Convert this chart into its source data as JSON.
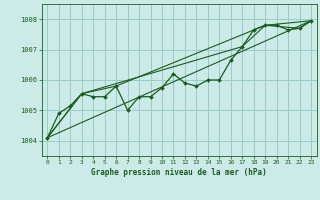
{
  "title": "Graphe pression niveau de la mer (hPa)",
  "background_color": "#cceae8",
  "grid_color": "#99cccc",
  "line_color": "#1a5c1a",
  "xlim": [
    -0.5,
    23.5
  ],
  "ylim": [
    1003.5,
    1008.5
  ],
  "yticks": [
    1004,
    1005,
    1006,
    1007,
    1008
  ],
  "xticks": [
    0,
    1,
    2,
    3,
    4,
    5,
    6,
    7,
    8,
    9,
    10,
    11,
    12,
    13,
    14,
    15,
    16,
    17,
    18,
    19,
    20,
    21,
    22,
    23
  ],
  "series1_x": [
    0,
    1,
    2,
    3,
    4,
    5,
    6,
    7,
    8,
    9,
    10,
    11,
    12,
    13,
    14,
    15,
    16,
    17,
    18,
    19,
    20,
    21,
    22,
    23
  ],
  "series1_y": [
    1004.1,
    1004.9,
    1005.15,
    1005.55,
    1005.45,
    1005.45,
    1005.8,
    1005.0,
    1005.45,
    1005.45,
    1005.75,
    1006.2,
    1005.9,
    1005.8,
    1006.0,
    1006.0,
    1006.65,
    1007.1,
    1007.65,
    1007.8,
    1007.8,
    1007.65,
    1007.7,
    1007.95
  ],
  "line1_x": [
    0,
    23
  ],
  "line1_y": [
    1004.1,
    1007.95
  ],
  "line2_x": [
    0,
    3,
    6,
    19,
    23
  ],
  "line2_y": [
    1004.1,
    1005.55,
    1005.8,
    1007.8,
    1007.95
  ],
  "line3_x": [
    0,
    3,
    17,
    19,
    22,
    23
  ],
  "line3_y": [
    1004.1,
    1005.55,
    1007.1,
    1007.8,
    1007.7,
    1007.95
  ]
}
